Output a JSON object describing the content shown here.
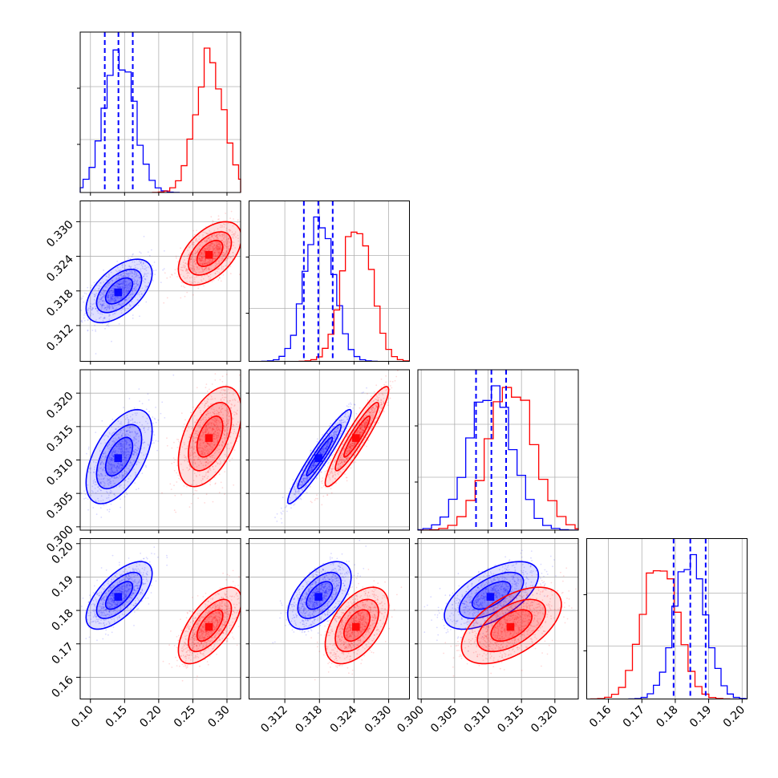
{
  "chart_data": {
    "type": "corner",
    "description_free": true,
    "parameters": [
      {
        "range": [
          0.085,
          0.32
        ],
        "ticks": [
          0.1,
          0.15,
          0.2,
          0.25,
          0.3
        ],
        "tick_labels": [
          "0.10",
          "0.15",
          "0.20",
          "0.25",
          "0.30"
        ]
      },
      {
        "range": [
          0.3058,
          0.3336
        ],
        "ticks": [
          0.312,
          0.318,
          0.324,
          0.33
        ],
        "tick_labels": [
          "0.312",
          "0.318",
          "0.324",
          "0.330"
        ]
      },
      {
        "range": [
          0.2995,
          0.3235
        ],
        "ticks": [
          0.3,
          0.305,
          0.31,
          0.315,
          0.32
        ],
        "tick_labels": [
          "0.300",
          "0.305",
          "0.310",
          "0.315",
          "0.320"
        ]
      },
      {
        "range": [
          0.1535,
          0.2015
        ],
        "ticks": [
          0.16,
          0.17,
          0.18,
          0.19,
          0.2
        ],
        "tick_labels": [
          "0.16",
          "0.17",
          "0.18",
          "0.19",
          "0.20"
        ]
      }
    ],
    "series": [
      {
        "color": "#0000ff",
        "means": [
          0.142,
          0.318,
          0.3105,
          0.1845
        ],
        "sigmas": [
          0.022,
          0.0025,
          0.0032,
          0.0046
        ],
        "correlations": [
          [
            1,
            0.55,
            0.55,
            0.65
          ],
          [
            0.55,
            1,
            0.95,
            0.55
          ],
          [
            0.55,
            0.95,
            1,
            0.6
          ],
          [
            0.65,
            0.55,
            0.6,
            1
          ]
        ],
        "quantiles": [
          [
            0.121,
            0.141,
            0.162
          ],
          [
            0.3153,
            0.3178,
            0.3203
          ],
          [
            0.3082,
            0.3105,
            0.3127
          ],
          [
            0.1795,
            0.1845,
            0.1891
          ]
        ],
        "peak_hist": [
          0.155,
          0.318,
          0.31,
          0.185
        ]
      },
      {
        "color": "#ff0000",
        "means": [
          0.275,
          0.3245,
          0.3135,
          0.1755
        ],
        "sigmas": [
          0.021,
          0.0025,
          0.0034,
          0.0052
        ],
        "correlations": [
          [
            1,
            0.5,
            0.5,
            0.65
          ],
          [
            0.5,
            1,
            0.93,
            0.5
          ],
          [
            0.5,
            0.93,
            1,
            0.55
          ],
          [
            0.65,
            0.5,
            0.55,
            1
          ]
        ]
      }
    ],
    "grid": true
  }
}
